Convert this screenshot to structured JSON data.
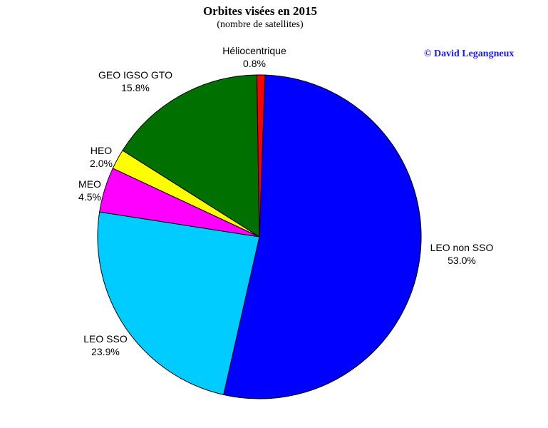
{
  "header": {
    "title": "Orbites visées en 2015",
    "subtitle": "(nombre de satellites)",
    "copyright": "© David Legangneux"
  },
  "chart_data": {
    "type": "pie",
    "title": "Orbites visées en 2015",
    "subtitle": "(nombre de satellites)",
    "slices": [
      {
        "label": "LEO non SSO",
        "value": 53.0,
        "display": "53.0%",
        "color": "#0000ff"
      },
      {
        "label": "LEO SSO",
        "value": 23.9,
        "display": "23.9%",
        "color": "#00ccff"
      },
      {
        "label": "MEO",
        "value": 4.5,
        "display": "4.5%",
        "color": "#ff00ff"
      },
      {
        "label": "HEO",
        "value": 2.0,
        "display": "2.0%",
        "color": "#ffff00"
      },
      {
        "label": "GEO  IGSO  GTO",
        "value": 15.8,
        "display": "15.8%",
        "color": "#007000"
      },
      {
        "label": "Héliocentrique",
        "value": 0.8,
        "display": "0.8%",
        "color": "#ff0000"
      }
    ]
  }
}
